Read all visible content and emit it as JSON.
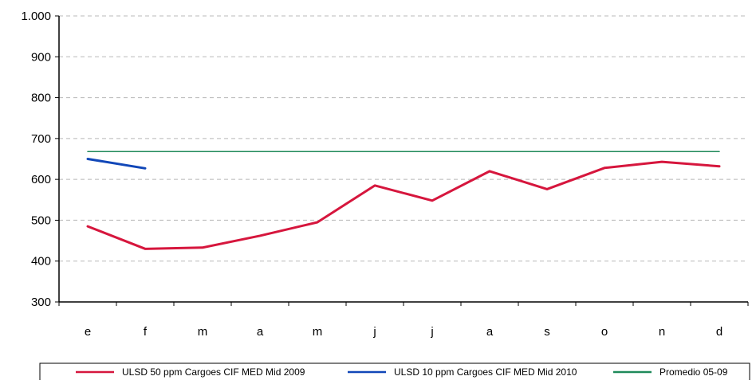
{
  "chart_data": {
    "type": "line",
    "title": "",
    "xlabel": "",
    "ylabel": "",
    "categories": [
      "e",
      "f",
      "m",
      "a",
      "m",
      "j",
      "j",
      "a",
      "s",
      "o",
      "n",
      "d"
    ],
    "ylim": [
      300,
      1000
    ],
    "yticks": [
      300,
      400,
      500,
      600,
      700,
      800,
      900,
      1000
    ],
    "ytick_labels": [
      "300",
      "400",
      "500",
      "600",
      "700",
      "800",
      "900",
      "1.000"
    ],
    "grid": "horizontal dashed",
    "legend_position": "bottom",
    "series": [
      {
        "name": "ULSD 50 ppm Cargoes CIF MED Mid 2009",
        "color": "#d6163d",
        "line_width": 3,
        "values": [
          485,
          430,
          433,
          462,
          495,
          585,
          548,
          620,
          576,
          628,
          643,
          632
        ]
      },
      {
        "name": "ULSD 10 ppm Cargoes CIF MED Mid 2010",
        "color": "#1147b8",
        "line_width": 3,
        "values": [
          650,
          627,
          null,
          null,
          null,
          null,
          null,
          null,
          null,
          null,
          null,
          null
        ]
      },
      {
        "name": "Promedio 05-09",
        "color": "#1f8a5a",
        "line_width": 1.5,
        "values": [
          668,
          668,
          668,
          668,
          668,
          668,
          668,
          668,
          668,
          668,
          668,
          668
        ]
      }
    ]
  }
}
